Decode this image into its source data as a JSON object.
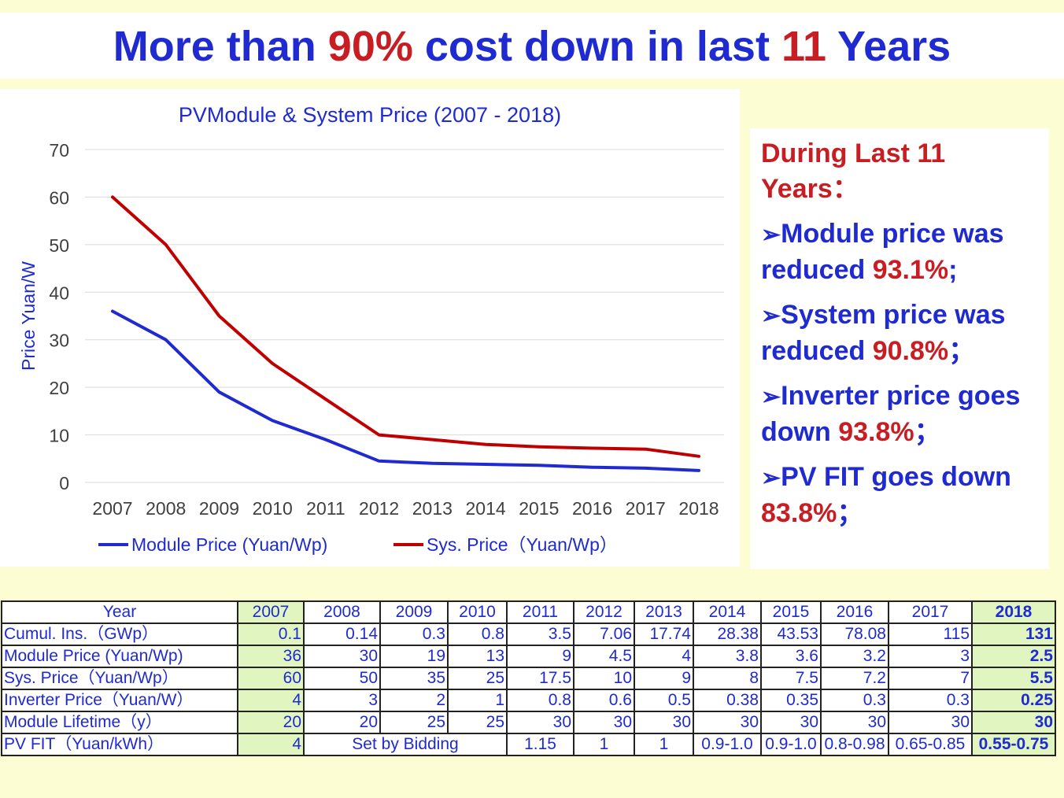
{
  "slide": {
    "title_parts": [
      {
        "text": "More than ",
        "hl": false
      },
      {
        "text": "90%",
        "hl": true
      },
      {
        "text": " cost down in last ",
        "hl": false
      },
      {
        "text": "11",
        "hl": true
      },
      {
        "text": " Years",
        "hl": false
      }
    ]
  },
  "colors": {
    "title_blue": "#1f2ad0",
    "highlight_red": "#c81e23",
    "module_line": "#1f2ad0",
    "system_line": "#c00000",
    "highlight_cell": "#e1f5c0",
    "background": "#fdfdd3"
  },
  "chart_data": {
    "type": "line",
    "title": "PVModule & System Price (2007 - 2018)",
    "xlabel": "",
    "ylabel": "Price Yuan/W",
    "ylim": [
      0,
      70
    ],
    "yticks": [
      0,
      10,
      20,
      30,
      40,
      50,
      60,
      70
    ],
    "grid": true,
    "legend_position": "bottom",
    "categories": [
      "2007",
      "2008",
      "2009",
      "2010",
      "2011",
      "2012",
      "2013",
      "2014",
      "2015",
      "2016",
      "2017",
      "2018"
    ],
    "series": [
      {
        "name": "Module Price (Yuan/Wp)",
        "color": "#1f2ad0",
        "values": [
          36,
          30,
          19,
          13,
          9,
          4.5,
          4,
          3.8,
          3.6,
          3.2,
          3,
          2.5
        ]
      },
      {
        "name": "Sys. Price（Yuan/Wp）",
        "color": "#c00000",
        "values": [
          60,
          50,
          35,
          25,
          17.5,
          10,
          9,
          8,
          7.5,
          7.2,
          7,
          5.5
        ]
      }
    ]
  },
  "side": {
    "heading": "During Last 11 Years：",
    "bullets": [
      {
        "text": "Module price was reduced ",
        "pct": "93.1%",
        "end": ";"
      },
      {
        "text": "System price was reduced ",
        "pct": "90.8%",
        "end": "；"
      },
      {
        "text": "Inverter price goes down ",
        "pct": "93.8%",
        "end": "；"
      },
      {
        "text": "PV FIT goes down ",
        "pct": "83.8%",
        "end": "；"
      }
    ]
  },
  "table": {
    "header": [
      "Year",
      "2007",
      "2008",
      "2009",
      "2010",
      "2011",
      "2012",
      "2013",
      "2014",
      "2015",
      "2016",
      "2017",
      "2018"
    ],
    "rows": [
      {
        "label": "Cumul. Ins.（GWp）",
        "cells": [
          "0.1",
          "0.14",
          "0.3",
          "0.8",
          "3.5",
          "7.06",
          "17.74",
          "28.38",
          "43.53",
          "78.08",
          "115",
          "131"
        ]
      },
      {
        "label": "Module Price (Yuan/Wp)",
        "cells": [
          "36",
          "30",
          "19",
          "13",
          "9",
          "4.5",
          "4",
          "3.8",
          "3.6",
          "3.2",
          "3",
          "2.5"
        ]
      },
      {
        "label": "Sys. Price（Yuan/Wp）",
        "cells": [
          "60",
          "50",
          "35",
          "25",
          "17.5",
          "10",
          "9",
          "8",
          "7.5",
          "7.2",
          "7",
          "5.5"
        ]
      },
      {
        "label": "Inverter Price（Yuan/W）",
        "cells": [
          "4",
          "3",
          "2",
          "1",
          "0.8",
          "0.6",
          "0.5",
          "0.38",
          "0.35",
          "0.3",
          "0.3",
          "0.25"
        ]
      },
      {
        "label": "Module Lifetime（y）",
        "cells": [
          "20",
          "20",
          "25",
          "25",
          "30",
          "30",
          "30",
          "30",
          "30",
          "30",
          "30",
          "30"
        ]
      }
    ],
    "fit_row": {
      "label": "PV FIT（Yuan/kWh）",
      "y2007": "4",
      "bidding": "Set by Bidding",
      "y2011": "1.15",
      "y2012": "1",
      "y2013": "1",
      "y2014": "0.9-1.0",
      "y2015": "0.9-1.0",
      "y2016": "0.8-0.98",
      "y2017": "0.65-0.85",
      "y2018": "0.55-0.75"
    }
  }
}
